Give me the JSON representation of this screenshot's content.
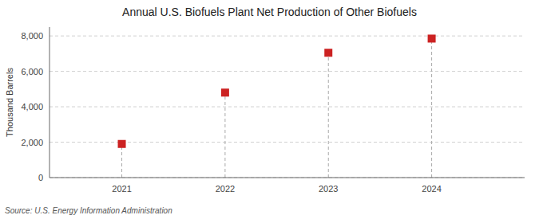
{
  "chart_data": {
    "type": "scatter",
    "title": "Annual U.S. Biofuels Plant Net Production of Other Biofuels",
    "ylabel": "Thousand Barrels",
    "source": "Source: U.S. Energy Information Administration",
    "x": [
      2021,
      2022,
      2023,
      2024
    ],
    "values": [
      1900,
      4800,
      7050,
      7850
    ],
    "color": "#cc2222",
    "marker": "square",
    "xlim": [
      2020.3,
      2024.9
    ],
    "xticks": [
      2021,
      2022,
      2023,
      2024
    ],
    "ylim": [
      0,
      8500
    ],
    "yticks": [
      0,
      {
        "value": 2000,
        "label": "2,000"
      },
      {
        "value": 4000,
        "label": "4,000"
      },
      {
        "value": 6000,
        "label": "6,000"
      },
      {
        "value": 8000,
        "label": "8,000"
      }
    ],
    "grid": true
  }
}
